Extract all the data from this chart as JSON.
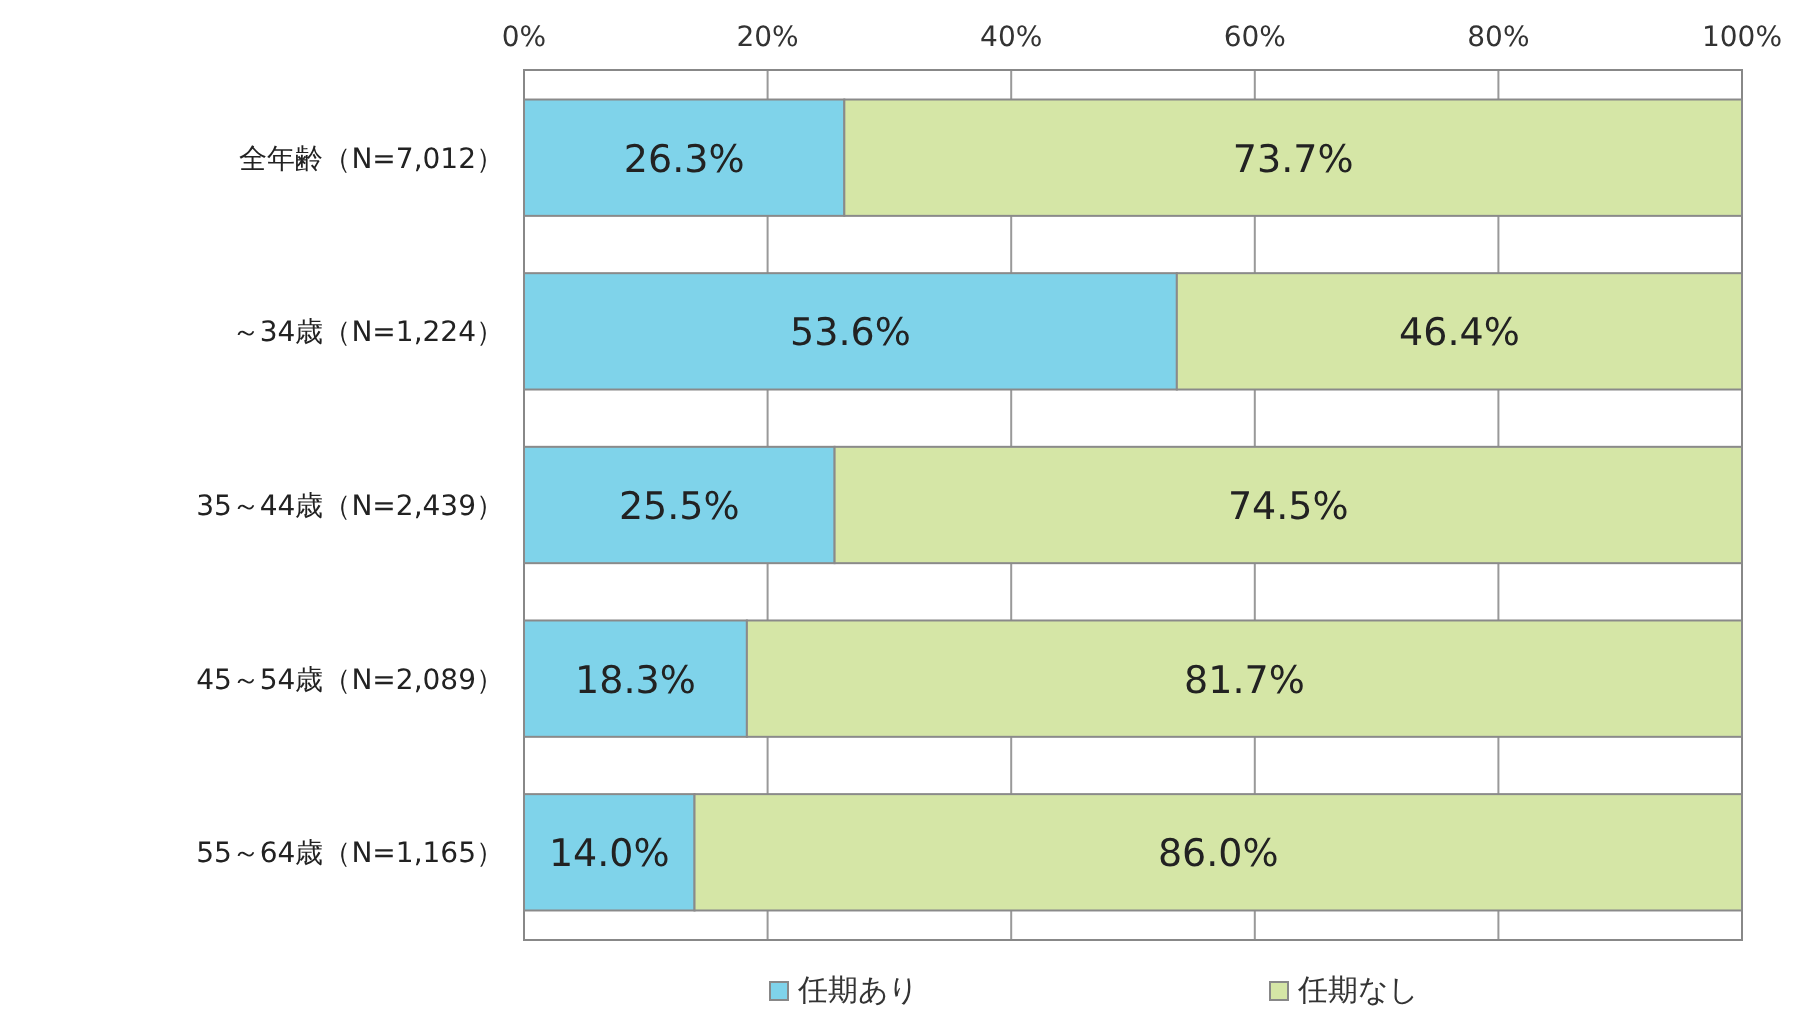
{
  "chart_data": {
    "type": "bar",
    "orientation": "horizontal",
    "stacked": true,
    "categories": [
      "全年齢（N=7,012）",
      "～34歳（N=1,224）",
      "35～44歳（N=2,439）",
      "45～54歳（N=2,089）",
      "55～64歳（N=1,165）"
    ],
    "series": [
      {
        "name": "任期あり",
        "color": "#7fd3ea",
        "values": [
          26.3,
          53.6,
          25.5,
          18.3,
          14.0
        ],
        "value_labels": [
          "26.3%",
          "53.6%",
          "25.5%",
          "18.3%",
          "14.0%"
        ]
      },
      {
        "name": "任期なし",
        "color": "#d5e6a6",
        "values": [
          73.7,
          46.4,
          74.5,
          81.7,
          86.0
        ],
        "value_labels": [
          "73.7%",
          "46.4%",
          "74.5%",
          "81.7%",
          "86.0%"
        ]
      }
    ],
    "xlim": [
      0,
      100
    ],
    "xticks": [
      {
        "value": 0,
        "label": "0%"
      },
      {
        "value": 20,
        "label": "20%"
      },
      {
        "value": 40,
        "label": "40%"
      },
      {
        "value": 60,
        "label": "60%"
      },
      {
        "value": 80,
        "label": "80%"
      },
      {
        "value": 100,
        "label": "100%"
      }
    ],
    "grid": "x",
    "legend": "bottom"
  }
}
